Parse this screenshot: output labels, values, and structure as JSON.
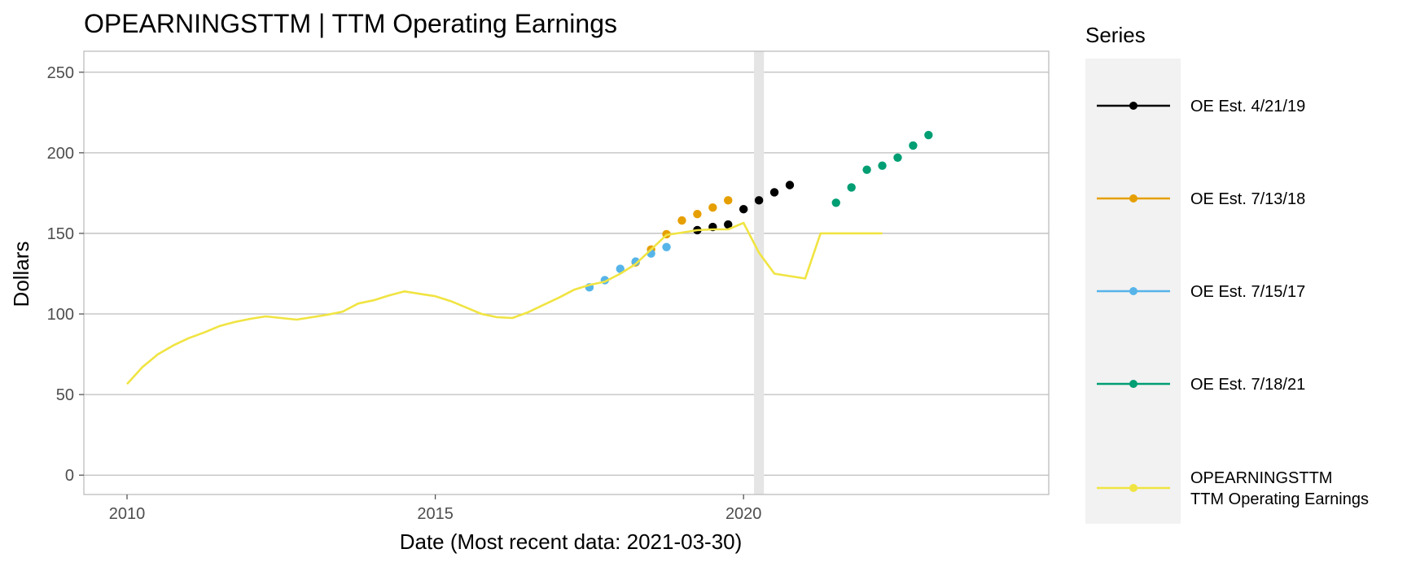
{
  "chart_data": {
    "type": "line",
    "title": "OPEARNINGSTTM | TTM Operating Earnings",
    "xlabel": "Date (Most recent data: 2021-03-30)",
    "ylabel": "Dollars",
    "xlim": [
      2009.3,
      2024.95
    ],
    "ylim": [
      -12,
      263
    ],
    "x_ticks": [
      2010,
      2015,
      2020
    ],
    "y_ticks": [
      0,
      50,
      100,
      150,
      200,
      250
    ],
    "grid": true,
    "legend_title": "Series",
    "legend_position": "right",
    "shaded_regions": [
      {
        "x_start": 2020.17,
        "x_end": 2020.33,
        "color": "#e5e5e5"
      }
    ],
    "series": [
      {
        "name": "OE Est. 4/21/19",
        "color": "#000000",
        "mode": "points",
        "x": [
          2019.25,
          2019.5,
          2019.75,
          2020.0,
          2020.25,
          2020.5,
          2020.75
        ],
        "y": [
          152,
          154,
          155.5,
          165,
          170.5,
          175.5,
          180
        ]
      },
      {
        "name": "OE Est. 7/13/18",
        "color": "#E69F00",
        "mode": "points",
        "x": [
          2018.25,
          2018.5,
          2018.75,
          2019.0,
          2019.25,
          2019.5,
          2019.75
        ],
        "y": [
          132,
          140,
          149.5,
          158,
          162,
          166,
          170.5
        ]
      },
      {
        "name": "OE Est. 7/15/17",
        "color": "#56B4E9",
        "mode": "points",
        "x": [
          2017.5,
          2017.75,
          2018.0,
          2018.25,
          2018.5,
          2018.75
        ],
        "y": [
          116.5,
          121,
          128,
          132.5,
          137.5,
          141.5
        ]
      },
      {
        "name": "OE Est. 7/18/21",
        "color": "#009E73",
        "mode": "points",
        "x": [
          2021.5,
          2021.75,
          2022.0,
          2022.25,
          2022.5,
          2022.75,
          2023.0
        ],
        "y": [
          169,
          178.5,
          189.5,
          192,
          197,
          204.5,
          211
        ]
      },
      {
        "name": "OPEARNINGSTTM\nTTM Operating Earnings",
        "color": "#F0E442",
        "mode": "line",
        "x": [
          2010.0,
          2010.25,
          2010.5,
          2010.75,
          2011.0,
          2011.25,
          2011.5,
          2011.75,
          2012.0,
          2012.25,
          2012.5,
          2012.75,
          2013.0,
          2013.25,
          2013.5,
          2013.75,
          2014.0,
          2014.25,
          2014.5,
          2014.75,
          2015.0,
          2015.25,
          2015.5,
          2015.75,
          2016.0,
          2016.25,
          2016.5,
          2016.75,
          2017.0,
          2017.25,
          2017.5,
          2017.75,
          2018.0,
          2018.25,
          2018.5,
          2018.75,
          2019.0,
          2019.25,
          2019.5,
          2019.75,
          2020.0,
          2020.25,
          2020.5,
          2020.75,
          2021.0,
          2021.25,
          2021.5,
          2021.75,
          2022.0,
          2022.25
        ],
        "y": [
          56.5,
          67,
          75,
          80.5,
          85,
          88.5,
          92.5,
          95,
          97,
          98.5,
          97.5,
          96.5,
          98,
          99.5,
          101.5,
          106.5,
          108.5,
          111.5,
          114,
          112.5,
          111,
          108,
          104,
          100,
          98,
          97.5,
          101,
          105.5,
          110,
          115,
          118,
          120,
          125,
          131,
          140,
          149,
          150.5,
          152,
          152.5,
          152.5,
          156.5,
          138,
          125,
          123.5,
          122,
          150,
          150,
          150,
          150,
          150
        ]
      }
    ]
  }
}
